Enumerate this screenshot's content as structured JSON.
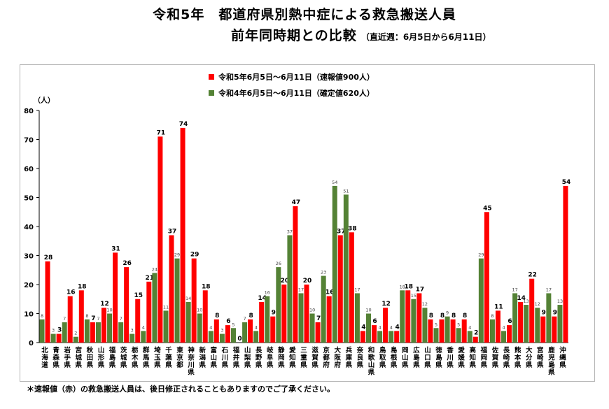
{
  "title_line1": "令和5年　都道府県別熱中症による救急搬送人員",
  "title_line2": "前年同時期との比較",
  "title_sub": "（直近週：6月5日から6月11日）",
  "footnote": "＊速報値（赤）の救急搬送人員は、後日修正されることもありますのでご了承ください。",
  "colors": {
    "current": "#ff0000",
    "previous": "#548235"
  },
  "chart_data": {
    "type": "bar",
    "ylabel": "（人）",
    "ylim": [
      0,
      80
    ],
    "yticks": [
      0,
      10,
      20,
      30,
      40,
      50,
      60,
      70,
      80
    ],
    "legend_position": "top-center",
    "categories": [
      "北海道",
      "青森県",
      "岩手県",
      "宮城県",
      "秋田県",
      "山形県",
      "福島県",
      "茨城県",
      "栃木県",
      "群馬県",
      "埼玉県",
      "千葉県",
      "東京都",
      "神奈川県",
      "新潟県",
      "富山県",
      "石川県",
      "福井県",
      "山梨県",
      "長野県",
      "岐阜県",
      "静岡県",
      "愛知県",
      "三重県",
      "滋賀県",
      "京都府",
      "大阪府",
      "兵庫県",
      "奈良県",
      "和歌山県",
      "鳥取県",
      "島根県",
      "岡山県",
      "広島県",
      "山口県",
      "徳島県",
      "香川県",
      "愛媛県",
      "高知県",
      "福岡県",
      "佐賀県",
      "長崎県",
      "熊本県",
      "大分県",
      "宮崎県",
      "鹿児島県",
      "沖縄県"
    ],
    "series": [
      {
        "name": "令和5年6月5日～6月11日（速報値900人）",
        "color": "#ff0000",
        "values": [
          28,
          3,
          16,
          18,
          7,
          12,
          31,
          26,
          15,
          21,
          71,
          37,
          74,
          29,
          18,
          8,
          6,
          0,
          8,
          14,
          9,
          20,
          47,
          20,
          7,
          16,
          37,
          38,
          4,
          6,
          12,
          4,
          18,
          17,
          8,
          8,
          8,
          8,
          2,
          45,
          11,
          6,
          14,
          22,
          9,
          9,
          54
        ]
      },
      {
        "name": "令和4年6月5日～6月11日（確定値620人）",
        "color": "#548235",
        "values": [
          8,
          3,
          7,
          2,
          8,
          7,
          10,
          7,
          3,
          4,
          24,
          11,
          29,
          14,
          10,
          4,
          3,
          5,
          7,
          4,
          16,
          26,
          37,
          17,
          10,
          23,
          54,
          51,
          17,
          10,
          4,
          4,
          18,
          15,
          12,
          5,
          9,
          5,
          4,
          29,
          8,
          4,
          17,
          13,
          12,
          17,
          13
        ]
      }
    ]
  }
}
